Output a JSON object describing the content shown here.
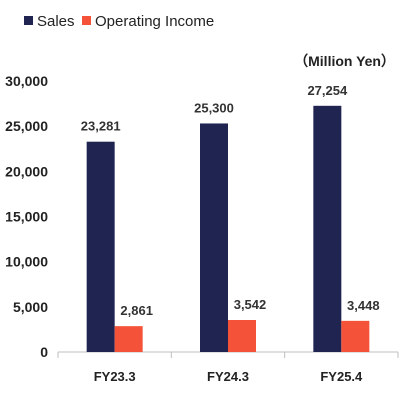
{
  "chart_data": {
    "type": "bar",
    "title": "",
    "unit_label": "（Million Yen）",
    "categories": [
      "FY23.3",
      "FY24.3",
      "FY25.4"
    ],
    "series": [
      {
        "name": "Sales",
        "values": [
          23281,
          25300,
          27254
        ],
        "labels": [
          "23,281",
          "25,300",
          "27,254"
        ],
        "color": "#1f2451"
      },
      {
        "name": "Operating Income",
        "values": [
          2861,
          3542,
          3448
        ],
        "labels": [
          "2,861",
          "3,542",
          "3,448"
        ],
        "color": "#f4533a"
      }
    ],
    "ylim": [
      0,
      30000
    ],
    "yticks": [
      0,
      5000,
      10000,
      15000,
      20000,
      25000,
      30000
    ],
    "ytick_labels": [
      "0",
      "5,000",
      "10,000",
      "15,000",
      "20,000",
      "25,000",
      "30,000"
    ],
    "grid": false,
    "legend_position": "top-left"
  }
}
